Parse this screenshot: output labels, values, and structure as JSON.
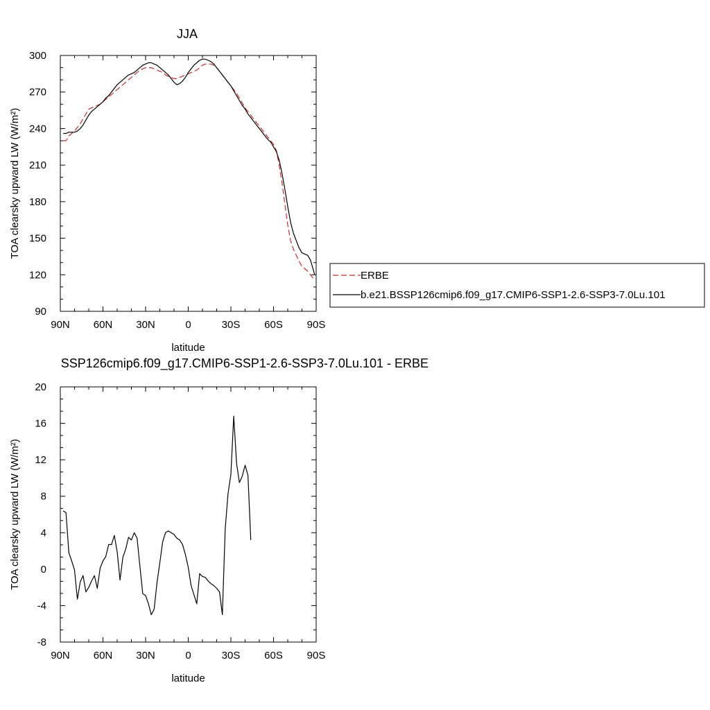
{
  "chart_data": [
    {
      "type": "line",
      "title": "JJA",
      "xlabel": "latitude",
      "ylabel": "TOA clearsky upward LW (W/m²)",
      "ylim": [
        90,
        300
      ],
      "yticks": [
        90,
        120,
        150,
        180,
        210,
        240,
        270,
        300
      ],
      "xlim": [
        90,
        -90
      ],
      "xticks": [
        90,
        60,
        30,
        0,
        -30,
        -60,
        -90
      ],
      "xtick_labels": [
        "90N",
        "60N",
        "30N",
        "0",
        "30S",
        "60S",
        "90S"
      ],
      "grid": false,
      "legend_position": "right",
      "series": [
        {
          "name": "ERBE",
          "color": "#d62728",
          "dash": "dashed",
          "points": [
            [
              88,
              230
            ],
            [
              86,
              230
            ],
            [
              84,
              234
            ],
            [
              82,
              236
            ],
            [
              80,
              238
            ],
            [
              78,
              241
            ],
            [
              76,
              244
            ],
            [
              74,
              248
            ],
            [
              72,
              252
            ],
            [
              70,
              256
            ],
            [
              68,
              257
            ],
            [
              66,
              258
            ],
            [
              64,
              259
            ],
            [
              62,
              260
            ],
            [
              60,
              262
            ],
            [
              58,
              264
            ],
            [
              56,
              266
            ],
            [
              54,
              268
            ],
            [
              52,
              270
            ],
            [
              50,
              272
            ],
            [
              48,
              274
            ],
            [
              46,
              276
            ],
            [
              44,
              278
            ],
            [
              42,
              280
            ],
            [
              40,
              282
            ],
            [
              38,
              284
            ],
            [
              36,
              286
            ],
            [
              34,
              288
            ],
            [
              32,
              289
            ],
            [
              30,
              290
            ],
            [
              28,
              290
            ],
            [
              26,
              290
            ],
            [
              24,
              289
            ],
            [
              22,
              288
            ],
            [
              20,
              287
            ],
            [
              18,
              286
            ],
            [
              16,
              284
            ],
            [
              14,
              283
            ],
            [
              12,
              282
            ],
            [
              10,
              281
            ],
            [
              8,
              281
            ],
            [
              6,
              282
            ],
            [
              4,
              283
            ],
            [
              2,
              284
            ],
            [
              0,
              285
            ],
            [
              -2,
              286
            ],
            [
              -4,
              287
            ],
            [
              -6,
              288
            ],
            [
              -8,
              290
            ],
            [
              -10,
              292
            ],
            [
              -12,
              293
            ],
            [
              -14,
              293
            ],
            [
              -16,
              293
            ],
            [
              -18,
              292
            ],
            [
              -20,
              290
            ],
            [
              -22,
              287
            ],
            [
              -24,
              284
            ],
            [
              -26,
              281
            ],
            [
              -28,
              278
            ],
            [
              -30,
              275
            ],
            [
              -32,
              272
            ],
            [
              -34,
              269
            ],
            [
              -36,
              265
            ],
            [
              -38,
              261
            ],
            [
              -40,
              257
            ],
            [
              -42,
              254
            ],
            [
              -44,
              251
            ],
            [
              -46,
              248
            ],
            [
              -48,
              245
            ],
            [
              -50,
              242
            ],
            [
              -52,
              239
            ],
            [
              -54,
              236
            ],
            [
              -56,
              233
            ],
            [
              -58,
              230
            ],
            [
              -60,
              227
            ],
            [
              -62,
              222
            ],
            [
              -64,
              210
            ],
            [
              -66,
              195
            ],
            [
              -68,
              178
            ],
            [
              -70,
              161
            ],
            [
              -72,
              148
            ],
            [
              -74,
              141
            ],
            [
              -76,
              136
            ],
            [
              -78,
              131
            ],
            [
              -80,
              127
            ],
            [
              -82,
              125
            ],
            [
              -84,
              123
            ],
            [
              -86,
              120
            ],
            [
              -88,
              117
            ]
          ]
        },
        {
          "name": "b.e21.BSSP126cmip6.f09_g17.CMIP6-SSP1-2.6-SSP3-7.0Lu.101",
          "color": "#000000",
          "dash": "solid",
          "points": [
            [
              88,
              236
            ],
            [
              86,
              236
            ],
            [
              84,
              237
            ],
            [
              82,
              237
            ],
            [
              80,
              237
            ],
            [
              78,
              238
            ],
            [
              76,
              240
            ],
            [
              74,
              243
            ],
            [
              72,
              247
            ],
            [
              70,
              251
            ],
            [
              68,
              254
            ],
            [
              66,
              256
            ],
            [
              64,
              258
            ],
            [
              62,
              260
            ],
            [
              60,
              262
            ],
            [
              58,
              265
            ],
            [
              56,
              267
            ],
            [
              54,
              270
            ],
            [
              52,
              273
            ],
            [
              50,
              276
            ],
            [
              48,
              278
            ],
            [
              46,
              280
            ],
            [
              44,
              282
            ],
            [
              42,
              284
            ],
            [
              40,
              285
            ],
            [
              38,
              286
            ],
            [
              36,
              288
            ],
            [
              34,
              290
            ],
            [
              32,
              292
            ],
            [
              30,
              293
            ],
            [
              28,
              294
            ],
            [
              26,
              294
            ],
            [
              24,
              293
            ],
            [
              22,
              292
            ],
            [
              20,
              290
            ],
            [
              18,
              288
            ],
            [
              16,
              286
            ],
            [
              14,
              284
            ],
            [
              12,
              281
            ],
            [
              10,
              278
            ],
            [
              8,
              276
            ],
            [
              6,
              277
            ],
            [
              4,
              279
            ],
            [
              2,
              282
            ],
            [
              0,
              286
            ],
            [
              -2,
              289
            ],
            [
              -4,
              292
            ],
            [
              -6,
              294
            ],
            [
              -8,
              296
            ],
            [
              -10,
              297
            ],
            [
              -12,
              297
            ],
            [
              -14,
              296
            ],
            [
              -16,
              295
            ],
            [
              -18,
              293
            ],
            [
              -20,
              290
            ],
            [
              -22,
              287
            ],
            [
              -24,
              284
            ],
            [
              -26,
              281
            ],
            [
              -28,
              278
            ],
            [
              -30,
              275
            ],
            [
              -32,
              271
            ],
            [
              -34,
              267
            ],
            [
              -36,
              263
            ],
            [
              -38,
              259
            ],
            [
              -40,
              256
            ],
            [
              -42,
              252
            ],
            [
              -44,
              249
            ],
            [
              -46,
              246
            ],
            [
              -48,
              243
            ],
            [
              -50,
              240
            ],
            [
              -52,
              237
            ],
            [
              -54,
              234
            ],
            [
              -56,
              231
            ],
            [
              -58,
              229
            ],
            [
              -60,
              225
            ],
            [
              -62,
              221
            ],
            [
              -64,
              214
            ],
            [
              -66,
              203
            ],
            [
              -68,
              190
            ],
            [
              -70,
              176
            ],
            [
              -72,
              163
            ],
            [
              -74,
              154
            ],
            [
              -76,
              148
            ],
            [
              -78,
              142
            ],
            [
              -80,
              138
            ],
            [
              -82,
              137
            ],
            [
              -84,
              136
            ],
            [
              -86,
              132
            ],
            [
              -88,
              124
            ],
            [
              -89,
              120
            ]
          ]
        }
      ]
    },
    {
      "type": "line",
      "title": "SSP126cmip6.f09_g17.CMIP6-SSP1-2.6-SSP3-7.0Lu.101 - ERBE",
      "xlabel": "latitude",
      "ylabel": "TOA clearsky upward LW (W/m²)",
      "ylim": [
        -8,
        20
      ],
      "yticks": [
        -8,
        -4,
        0,
        4,
        8,
        12,
        16,
        20
      ],
      "xlim": [
        90,
        -90
      ],
      "xticks": [
        90,
        60,
        30,
        0,
        -30,
        -60,
        -90
      ],
      "xtick_labels": [
        "90N",
        "60N",
        "30N",
        "0",
        "30S",
        "60S",
        "90S"
      ],
      "grid": false,
      "series": [
        {
          "color": "#000000",
          "dash": "solid",
          "points": [
            [
              88,
              6.4
            ],
            [
              86,
              6.2
            ],
            [
              84,
              1.8
            ],
            [
              82,
              0.9
            ],
            [
              80,
              -0.1
            ],
            [
              78,
              -3.3
            ],
            [
              76,
              -1.4
            ],
            [
              74,
              -0.7
            ],
            [
              72,
              -2.5
            ],
            [
              70,
              -2.0
            ],
            [
              68,
              -1.3
            ],
            [
              66,
              -0.7
            ],
            [
              64,
              -2.1
            ],
            [
              62,
              0.1
            ],
            [
              60,
              0.9
            ],
            [
              58,
              1.4
            ],
            [
              56,
              2.7
            ],
            [
              54,
              2.7
            ],
            [
              52,
              3.7
            ],
            [
              50,
              1.9
            ],
            [
              48,
              -1.2
            ],
            [
              46,
              1.3
            ],
            [
              44,
              2.2
            ],
            [
              42,
              3.5
            ],
            [
              40,
              3.2
            ],
            [
              38,
              4.0
            ],
            [
              36,
              3.4
            ],
            [
              34,
              0.3
            ],
            [
              32,
              -2.7
            ],
            [
              30,
              -2.9
            ],
            [
              28,
              -3.8
            ],
            [
              26,
              -5.0
            ],
            [
              24,
              -4.4
            ],
            [
              22,
              -1.5
            ],
            [
              20,
              0.7
            ],
            [
              18,
              3.0
            ],
            [
              16,
              4.0
            ],
            [
              14,
              4.2
            ],
            [
              12,
              4.0
            ],
            [
              10,
              3.8
            ],
            [
              8,
              3.4
            ],
            [
              6,
              3.2
            ],
            [
              4,
              2.7
            ],
            [
              2,
              1.6
            ],
            [
              0,
              0.2
            ],
            [
              -2,
              -1.8
            ],
            [
              -4,
              -2.8
            ],
            [
              -6,
              -3.8
            ],
            [
              -8,
              -0.5
            ],
            [
              -10,
              -0.8
            ],
            [
              -12,
              -0.9
            ],
            [
              -14,
              -1.3
            ],
            [
              -16,
              -1.6
            ],
            [
              -18,
              -1.8
            ],
            [
              -20,
              -2.1
            ],
            [
              -22,
              -2.5
            ],
            [
              -24,
              -5.0
            ],
            [
              -26,
              4.4
            ],
            [
              -28,
              8.3
            ],
            [
              -30,
              10.4
            ],
            [
              -32,
              16.8
            ],
            [
              -34,
              11.6
            ],
            [
              -36,
              9.5
            ],
            [
              -38,
              10.2
            ],
            [
              -40,
              11.4
            ],
            [
              -42,
              10.3
            ],
            [
              -44,
              3.2
            ]
          ]
        }
      ]
    }
  ]
}
